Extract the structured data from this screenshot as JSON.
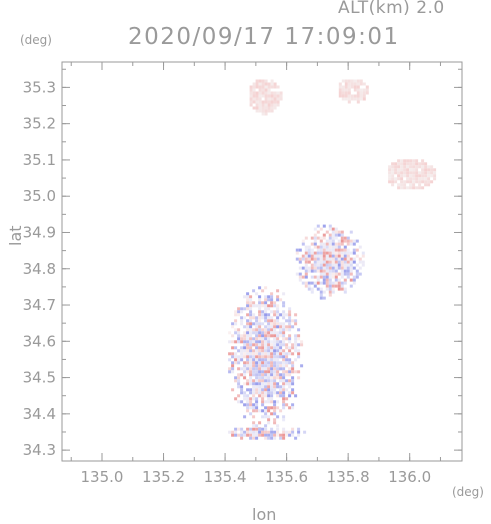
{
  "header": {
    "altitude_label": "ALT(km) 2.0",
    "timestamp": "2020/09/17 17:09:01"
  },
  "axes": {
    "x_unit": "(deg)",
    "y_unit": "(deg)",
    "x_title": "lon",
    "y_title": "lat"
  },
  "chart_data": {
    "type": "heatmap",
    "title": "2020/09/17 17:09:01",
    "subtitle": "ALT(km) 2.0",
    "xlabel": "lon",
    "ylabel": "lat",
    "xlim": [
      134.87,
      136.17
    ],
    "ylim": [
      34.27,
      35.37
    ],
    "x_ticks": [
      "135.0",
      "135.2",
      "135.4",
      "135.6",
      "135.8",
      "136.0"
    ],
    "y_ticks": [
      "34.3",
      "34.4",
      "34.5",
      "34.6",
      "34.7",
      "34.8",
      "34.9",
      "35.0",
      "35.1",
      "35.2",
      "35.3"
    ],
    "colors": {
      "positive": "#f2a0a0",
      "negative": "#9da2ee",
      "axis": "#9a9a9a"
    },
    "regions": [
      {
        "lon": [
          135.4,
          135.65
        ],
        "lat": [
          34.36,
          34.76
        ],
        "tone": "mixed"
      },
      {
        "lon": [
          135.62,
          135.85
        ],
        "lat": [
          34.72,
          34.93
        ],
        "tone": "mixed"
      },
      {
        "lon": [
          135.47,
          135.58
        ],
        "lat": [
          35.23,
          35.33
        ],
        "tone": "positive"
      },
      {
        "lon": [
          135.76,
          135.86
        ],
        "lat": [
          35.26,
          35.33
        ],
        "tone": "positive"
      },
      {
        "lon": [
          135.92,
          136.08
        ],
        "lat": [
          35.02,
          35.11
        ],
        "tone": "positive"
      },
      {
        "lon": [
          135.4,
          135.67
        ],
        "lat": [
          34.33,
          34.37
        ],
        "tone": "mixed"
      }
    ]
  }
}
